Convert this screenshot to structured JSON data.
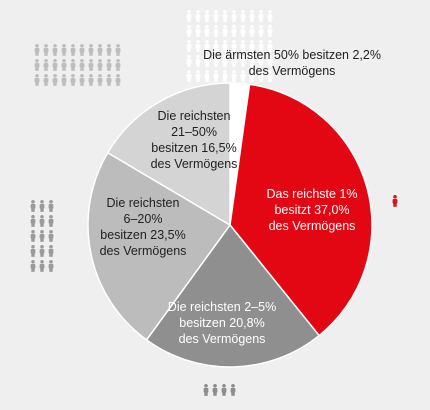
{
  "chart_data": {
    "type": "pie",
    "title": "",
    "start_angle_deg": 0,
    "direction": "clockwise",
    "slices": [
      {
        "label_lines": [
          "Die ärmsten 50% besitzen 2,2%",
          "des Vermögens"
        ],
        "value": 2.2,
        "color": "#ffffff",
        "text_color": "#222222"
      },
      {
        "label_lines": [
          "Das reichste 1%",
          "besitzt 37,0%",
          "des Vermögens"
        ],
        "value": 37.0,
        "color": "#e30613",
        "text_color": "#ffffff"
      },
      {
        "label_lines": [
          "Die reichsten 2–5%",
          "besitzen 20,8%",
          "des Vermögens"
        ],
        "value": 20.8,
        "color": "#8f8f8f",
        "text_color": "#ffffff"
      },
      {
        "label_lines": [
          "Die reichsten",
          "6–20%",
          "besitzen 23,5%",
          "des Vermögens"
        ],
        "value": 23.5,
        "color": "#bcbcbc",
        "text_color": "#222222"
      },
      {
        "label_lines": [
          "Die reichsten",
          "21–50%",
          "besitzen 16,5%",
          "des Vermögens"
        ],
        "value": 16.5,
        "color": "#d4d4d4",
        "text_color": "#222222"
      }
    ],
    "people_groups": [
      {
        "name": "poorest-50",
        "count": 50,
        "color": "#ffffff"
      },
      {
        "name": "richest-1",
        "count": 1,
        "color": "#d6141c"
      },
      {
        "name": "richest-2-5",
        "count": 4,
        "color": "#8c8c8c"
      },
      {
        "name": "richest-6-20",
        "count": 15,
        "color": "#9a9a9a"
      },
      {
        "name": "richest-21-50",
        "count": 30,
        "color": "#bdbdbd"
      }
    ]
  }
}
